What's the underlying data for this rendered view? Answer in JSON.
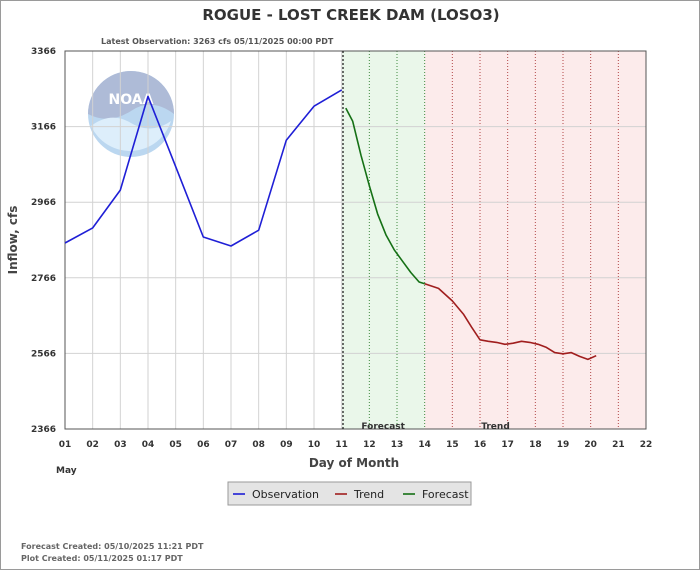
{
  "title": "ROGUE - LOST CREEK DAM  (LOSO3)",
  "latest_observation": "Latest Observation: 3263 cfs 05/11/2025 00:00 PDT",
  "watermark": "NOAA",
  "footer": {
    "forecast_created": "Forecast Created: 05/10/2025 11:21 PDT",
    "plot_created": "Plot Created: 05/11/2025 01:17 PDT"
  },
  "colors": {
    "observation": "#1f1fd6",
    "trend": "#a01e1e",
    "forecast": "#157015",
    "forecast_zone": "#eaf7ea",
    "trend_zone": "#fcebeb"
  },
  "chart_data": {
    "type": "line",
    "xlabel": "Day of Month",
    "ylabel": "Inflow, cfs",
    "month_label": "May",
    "xlim": [
      1,
      22
    ],
    "ylim": [
      2366,
      3366
    ],
    "x_ticks": [
      "01",
      "02",
      "03",
      "04",
      "05",
      "06",
      "07",
      "08",
      "09",
      "10",
      "11",
      "12",
      "13",
      "14",
      "15",
      "16",
      "17",
      "18",
      "19",
      "20",
      "21",
      "22"
    ],
    "y_ticks": [
      2366,
      2566,
      2766,
      2966,
      3166,
      3366
    ],
    "zones": [
      {
        "label": "Forecast",
        "from": 11,
        "to": 14
      },
      {
        "label": "Trend",
        "from": 14,
        "to": 22
      }
    ],
    "legend": [
      "Observation",
      "Trend",
      "Forecast"
    ],
    "series": [
      {
        "name": "Observation",
        "color": "#1f1fd6",
        "x": [
          1,
          2,
          3,
          4,
          5,
          6,
          7,
          8,
          9,
          10,
          11
        ],
        "y": [
          2858,
          2898,
          2998,
          3246,
          3060,
          2874,
          2850,
          2892,
          3130,
          3220,
          3263
        ]
      },
      {
        "name": "Forecast",
        "color": "#157015",
        "x": [
          11.15,
          11.4,
          11.7,
          12.0,
          12.3,
          12.6,
          12.9,
          13.2,
          13.5,
          13.8,
          14.0
        ],
        "y": [
          3215,
          3180,
          3090,
          3010,
          2935,
          2880,
          2840,
          2810,
          2780,
          2755,
          2750
        ]
      },
      {
        "name": "Trend",
        "color": "#a01e1e",
        "x": [
          14.0,
          14.5,
          15.0,
          15.4,
          15.7,
          16.0,
          16.3,
          16.6,
          16.9,
          17.2,
          17.5,
          17.8,
          18.1,
          18.4,
          18.7,
          19.0,
          19.3,
          19.6,
          19.9,
          20.2
        ],
        "y": [
          2750,
          2738,
          2705,
          2670,
          2635,
          2602,
          2598,
          2595,
          2590,
          2593,
          2598,
          2595,
          2590,
          2582,
          2568,
          2565,
          2568,
          2558,
          2550,
          2560
        ]
      }
    ]
  }
}
